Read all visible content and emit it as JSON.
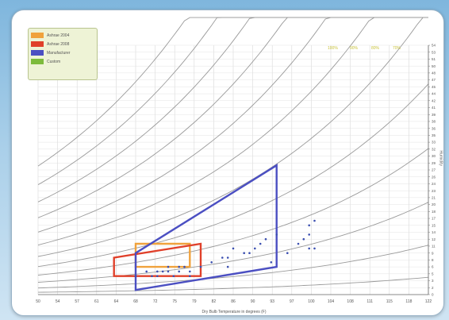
{
  "chart_data": {
    "type": "scatter",
    "title": "",
    "xlabel": "Dry Bulb Temperature in degrees (F)",
    "ylabel": "Humidity",
    "xlim": [
      50,
      122
    ],
    "ylim": [
      0,
      54
    ],
    "x_ticks": [
      "50",
      "54",
      "57",
      "61",
      "64",
      "68",
      "72",
      "75",
      "79",
      "82",
      "86",
      "90",
      "93",
      "97",
      "100",
      "104",
      "108",
      "111",
      "115",
      "118",
      "122"
    ],
    "y_ticks": [
      "0",
      "2",
      "3",
      "5",
      "6",
      "8",
      "9",
      "11",
      "12",
      "14",
      "15",
      "17",
      "18",
      "20",
      "21",
      "23",
      "24",
      "26",
      "27",
      "29",
      "30",
      "32",
      "33",
      "35",
      "36",
      "38",
      "39",
      "41",
      "42",
      "44",
      "45",
      "47",
      "48",
      "50",
      "51",
      "53",
      "54"
    ],
    "rh_labels": [
      "100%",
      "90%",
      "80%",
      "70%"
    ],
    "legend": [
      {
        "label": "Ashrae 2004",
        "color": "#f0a23c"
      },
      {
        "label": "Ashrae 2008",
        "color": "#e0402a"
      },
      {
        "label": "Manufacturer",
        "color": "#4b4fc2"
      },
      {
        "label": "Custom",
        "color": "#7dbb3c"
      }
    ],
    "envelopes": [
      {
        "name": "Ashrae 2004",
        "color": "#f0a23c",
        "points": [
          [
            68,
            6
          ],
          [
            78,
            6
          ],
          [
            78,
            11
          ],
          [
            68,
            11
          ]
        ]
      },
      {
        "name": "Ashrae 2008",
        "color": "#e0402a",
        "points": [
          [
            64,
            4
          ],
          [
            80,
            4
          ],
          [
            80,
            11
          ],
          [
            64,
            8
          ]
        ]
      },
      {
        "name": "Manufacturer",
        "color": "#4b4fc2",
        "points": [
          [
            68,
            1
          ],
          [
            94,
            6
          ],
          [
            94,
            28
          ],
          [
            68,
            9
          ]
        ]
      }
    ],
    "series": [
      {
        "points": [
          [
            68,
            4
          ],
          [
            70,
            5
          ],
          [
            71,
            4
          ],
          [
            72,
            5
          ],
          [
            73,
            5
          ],
          [
            74,
            6
          ],
          [
            75,
            4
          ],
          [
            76,
            5
          ],
          [
            76,
            6
          ],
          [
            77,
            6
          ],
          [
            78,
            5
          ],
          [
            80,
            6
          ],
          [
            82,
            7
          ],
          [
            84,
            8
          ],
          [
            85,
            6
          ],
          [
            85,
            8
          ],
          [
            86,
            10
          ],
          [
            88,
            9
          ],
          [
            89,
            9
          ],
          [
            90,
            10
          ],
          [
            91,
            11
          ],
          [
            92,
            12
          ],
          [
            93,
            7
          ],
          [
            94,
            13
          ],
          [
            96,
            9
          ],
          [
            98,
            11
          ],
          [
            99,
            12
          ],
          [
            100,
            13
          ],
          [
            100,
            15
          ],
          [
            101,
            16
          ],
          [
            100,
            10
          ],
          [
            101,
            10
          ],
          [
            72,
            4
          ],
          [
            74,
            5
          ],
          [
            78,
            4
          ]
        ]
      }
    ],
    "grid": true
  }
}
